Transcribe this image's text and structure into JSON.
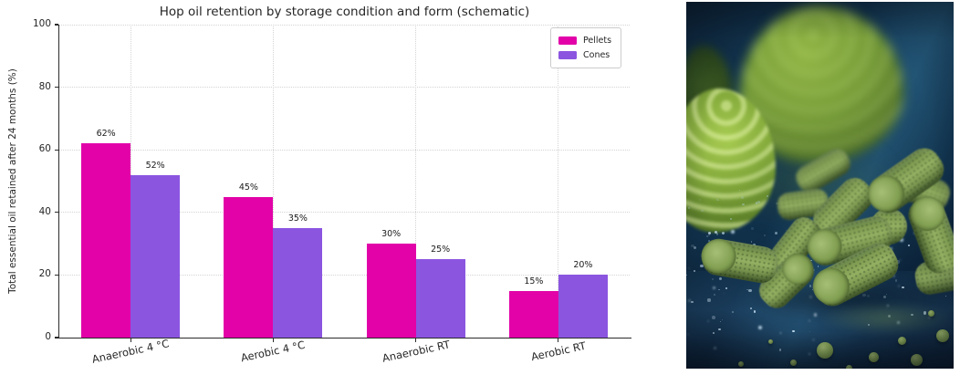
{
  "chart_data": {
    "type": "bar",
    "title": "Hop oil retention by storage condition and form (schematic)",
    "ylabel": "Total essential oil retained after 24 months (%)",
    "xlabel": "",
    "categories": [
      "Anaerobic 4 °C",
      "Aerobic 4 °C",
      "Anaerobic RT",
      "Aerobic RT"
    ],
    "series": [
      {
        "name": "Pellets",
        "color": "#e202a8",
        "values": [
          62,
          45,
          30,
          15
        ],
        "bar_labels": [
          "62%",
          "45%",
          "30%",
          "15%"
        ]
      },
      {
        "name": "Cones",
        "color": "#8b55e0",
        "values": [
          52,
          35,
          25,
          20
        ],
        "bar_labels": [
          "52%",
          "35%",
          "25%",
          "20%"
        ]
      }
    ],
    "ylim": [
      0,
      100
    ],
    "yticks": [
      0,
      20,
      40,
      60,
      80,
      100
    ],
    "grid": {
      "horizontal": true,
      "vertical": true,
      "style": "dotted"
    },
    "legend": {
      "position": "upper right",
      "items": [
        "Pellets",
        "Cones"
      ]
    }
  }
}
